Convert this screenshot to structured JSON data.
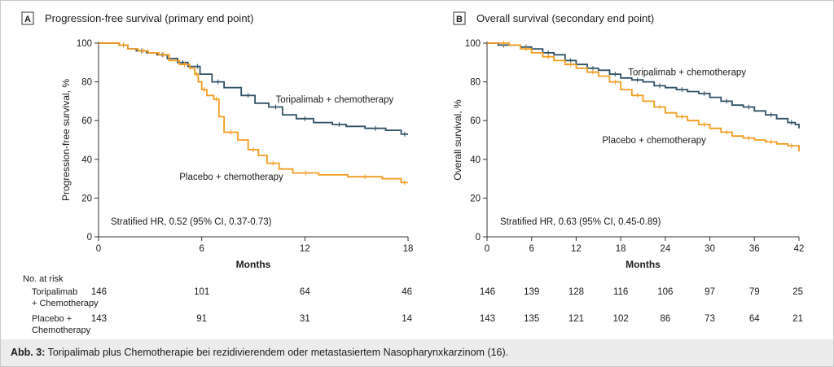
{
  "caption": {
    "label": "Abb. 3:",
    "text": " Toripalimab plus Chemotherapie bei rezidivierendem oder metastasiertem Nasopharynxkarzinom (16)."
  },
  "colors": {
    "toripalimab": "#2e5166",
    "placebo": "#f39c1f",
    "axis": "#333333"
  },
  "chart_data": [
    {
      "type": "line",
      "panel_label": "A",
      "title": "Progression-free survival (primary end point)",
      "xlabel": "Months",
      "ylabel": "Progression-free survival, %",
      "xlim": [
        0,
        18
      ],
      "ylim": [
        0,
        100
      ],
      "xticks": [
        0,
        6,
        12,
        18
      ],
      "yticks": [
        0,
        20,
        40,
        60,
        80,
        100
      ],
      "annotation": "Stratified HR, 0.52 (95% CI, 0.37-0.73)",
      "series": [
        {
          "name": "Toripalimab + chemotherapy",
          "color_key": "toripalimab",
          "x": [
            0,
            1.2,
            1.7,
            2.2,
            2.8,
            3.4,
            4.0,
            4.6,
            5.2,
            5.6,
            5.9,
            6.6,
            7.3,
            8.3,
            9.1,
            9.9,
            10.7,
            11.5,
            12.5,
            13.6,
            14.4,
            15.5,
            16.7,
            17.6,
            18
          ],
          "y": [
            100,
            99,
            97,
            96,
            95,
            94,
            92,
            90,
            88,
            88,
            84,
            80,
            77,
            73,
            69,
            67,
            63,
            61,
            59,
            58,
            57,
            56,
            55,
            53,
            53
          ],
          "label_at": [
            10.3,
            71
          ]
        },
        {
          "name": "Placebo + chemotherapy",
          "color_key": "placebo",
          "x": [
            0,
            1.2,
            1.7,
            2.3,
            2.9,
            3.5,
            4.1,
            4.7,
            5.3,
            5.6,
            5.8,
            6.0,
            6.3,
            6.7,
            7.0,
            7.3,
            8.1,
            8.7,
            9.3,
            9.8,
            10.5,
            11.3,
            12.8,
            14.5,
            16.5,
            17.6,
            18
          ],
          "y": [
            100,
            99,
            97,
            96,
            95,
            94,
            91,
            89,
            87,
            84,
            80,
            76,
            73,
            71,
            62,
            54,
            50,
            45,
            42,
            38,
            35,
            33,
            32,
            31,
            30,
            28,
            28
          ],
          "label_at": [
            4.7,
            31
          ]
        }
      ],
      "risk_table": {
        "header": "No. at risk",
        "months": [
          0,
          6,
          12,
          18
        ],
        "rows": [
          {
            "label": [
              "Toripalimab",
              "+ Chemotherapy"
            ],
            "values": [
              146,
              101,
              64,
              46
            ]
          },
          {
            "label": [
              "Placebo +",
              "Chemotherapy"
            ],
            "values": [
              143,
              91,
              31,
              14
            ]
          }
        ]
      }
    },
    {
      "type": "line",
      "panel_label": "B",
      "title": "Overall survival (secondary end point)",
      "xlabel": "Months",
      "ylabel": "Overall survival, %",
      "xlim": [
        0,
        42
      ],
      "ylim": [
        0,
        100
      ],
      "xticks": [
        0,
        6,
        12,
        18,
        24,
        30,
        36,
        42
      ],
      "yticks": [
        0,
        20,
        40,
        60,
        80,
        100
      ],
      "annotation": "Stratified HR, 0.63 (95% CI, 0.45-0.89)",
      "series": [
        {
          "name": "Toripalimab + chemotherapy",
          "color_key": "toripalimab",
          "x": [
            0,
            1.5,
            3,
            4.5,
            6,
            7.5,
            9,
            10.5,
            12,
            13.5,
            15,
            16.5,
            18,
            19.5,
            21,
            22.5,
            24,
            25.5,
            27,
            28.5,
            30,
            31.5,
            33,
            34.5,
            36,
            37.5,
            39,
            40.5,
            41.5,
            42
          ],
          "y": [
            100,
            99,
            99,
            98,
            97,
            95,
            94,
            91,
            89,
            87,
            86,
            84,
            82,
            81,
            80,
            78,
            77,
            76,
            75,
            74,
            72,
            70,
            68,
            67,
            65,
            63,
            61,
            59,
            58,
            56
          ],
          "label_at": [
            19,
            85
          ]
        },
        {
          "name": "Placebo + chemotherapy",
          "color_key": "placebo",
          "x": [
            0,
            1.5,
            3,
            4.5,
            6,
            7.5,
            9,
            10.5,
            12,
            13.5,
            15,
            16.5,
            18,
            19.5,
            21,
            22.5,
            24,
            25.5,
            27,
            28.5,
            30,
            31.5,
            33,
            34.5,
            36,
            37.5,
            39,
            40.5,
            41.5,
            42
          ],
          "y": [
            100,
            100,
            99,
            97,
            95,
            93,
            91,
            89,
            87,
            85,
            83,
            80,
            76,
            73,
            70,
            67,
            64,
            62,
            60,
            58,
            56,
            54,
            52,
            51,
            50,
            49,
            48,
            47,
            47,
            44
          ],
          "label_at": [
            15.5,
            50
          ]
        }
      ],
      "risk_table": {
        "months": [
          0,
          6,
          12,
          18,
          24,
          30,
          36,
          42
        ],
        "rows": [
          {
            "values": [
              146,
              139,
              128,
              116,
              106,
              97,
              79,
              25
            ]
          },
          {
            "values": [
              143,
              135,
              121,
              102,
              86,
              73,
              64,
              21
            ]
          }
        ]
      }
    }
  ]
}
